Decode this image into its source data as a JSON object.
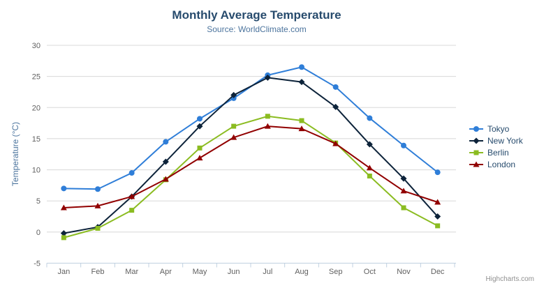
{
  "chart": {
    "title": "Monthly Average Temperature",
    "subtitle": "Source: WorldClimate.com",
    "y_axis_title": "Temperature (°C)",
    "credits": "Highcharts.com",
    "context_menu_icon": "hamburger-icon"
  },
  "style_colors": {
    "title": "#274b6d",
    "subtitle": "#4d759e",
    "axis_label": "#606060",
    "axis_line": "#c0d0e0",
    "grid_line": "#d8d8d8",
    "legend_text": "#274b6d",
    "credits_text": "#909090",
    "menu_icon": "#666666",
    "background": "#ffffff"
  },
  "chart_data": {
    "type": "line",
    "title": "Monthly Average Temperature",
    "subtitle": "Source: WorldClimate.com",
    "xlabel": "",
    "ylabel": "Temperature (°C)",
    "categories": [
      "Jan",
      "Feb",
      "Mar",
      "Apr",
      "May",
      "Jun",
      "Jul",
      "Aug",
      "Sep",
      "Oct",
      "Nov",
      "Dec"
    ],
    "ylim": [
      -5,
      30
    ],
    "y_ticks": [
      -5,
      0,
      5,
      10,
      15,
      20,
      25,
      30
    ],
    "grid": "horizontal-only",
    "legend_position": "right",
    "series": [
      {
        "name": "Tokyo",
        "color": "#2f7ed8",
        "marker": "circle",
        "values": [
          7.0,
          6.9,
          9.5,
          14.5,
          18.2,
          21.5,
          25.2,
          26.5,
          23.3,
          18.3,
          13.9,
          9.6
        ]
      },
      {
        "name": "New York",
        "color": "#0d233a",
        "marker": "diamond",
        "values": [
          -0.2,
          0.8,
          5.7,
          11.3,
          17.0,
          22.0,
          24.8,
          24.1,
          20.1,
          14.1,
          8.6,
          2.5
        ]
      },
      {
        "name": "Berlin",
        "color": "#8bbc21",
        "marker": "square",
        "values": [
          -0.9,
          0.6,
          3.5,
          8.4,
          13.5,
          17.0,
          18.6,
          17.9,
          14.3,
          9.0,
          3.9,
          1.0
        ]
      },
      {
        "name": "London",
        "color": "#910000",
        "marker": "triangle",
        "values": [
          3.9,
          4.2,
          5.7,
          8.5,
          11.9,
          15.2,
          17.0,
          16.6,
          14.2,
          10.3,
          6.6,
          4.8
        ]
      }
    ]
  }
}
